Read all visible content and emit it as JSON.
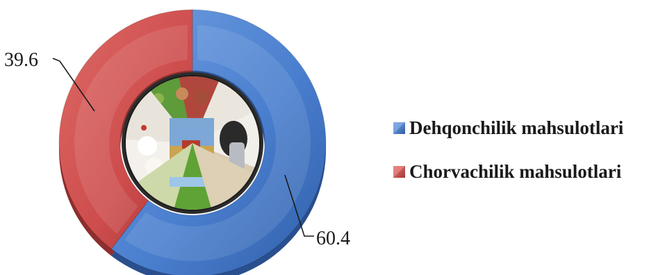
{
  "chart_data": {
    "type": "pie",
    "variant": "doughnut",
    "categories": [
      "Dehqonchilik mahsulotlari",
      "Chorvachilik mahsulotlari"
    ],
    "values": [
      60.4,
      39.6
    ],
    "data_labels": [
      "60.4",
      "39.6"
    ],
    "colors": [
      "#4a7fcf",
      "#cd4c4c"
    ],
    "legend": "right",
    "center_image": "agriculture-collage"
  }
}
